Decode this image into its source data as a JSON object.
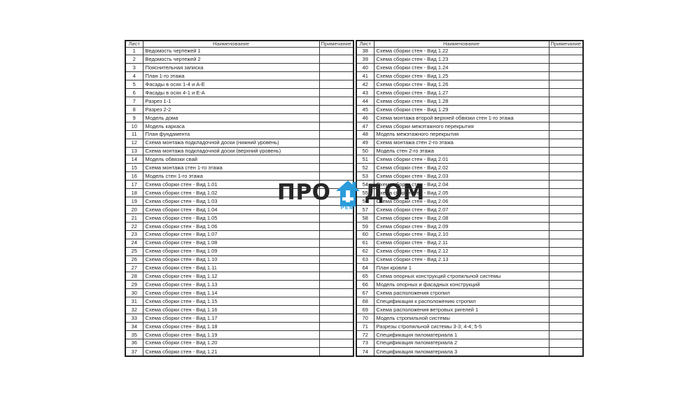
{
  "watermark": {
    "left_text": "ПРО",
    "right_text": "ДОМ",
    "sub_text": "РЕМ",
    "text_color": "#262626",
    "accent_color": "#2b9cdb",
    "icon": "house-icon"
  },
  "tables": [
    {
      "headers": {
        "sheet": "Лист",
        "name": "Наименование",
        "note": "Примечание"
      },
      "rows": [
        [
          "1",
          "Ведомость чертежей 1",
          ""
        ],
        [
          "2",
          "Ведомость чертежей 2",
          ""
        ],
        [
          "3",
          "Пояснительная записка",
          ""
        ],
        [
          "4",
          "План 1-го этажа",
          ""
        ],
        [
          "5",
          "Фасады в осях 1-4 и А-Е",
          ""
        ],
        [
          "6",
          "Фасады в осях 4-1 и Е-А",
          ""
        ],
        [
          "7",
          "Разрез 1-1",
          ""
        ],
        [
          "8",
          "Разрез 2-2",
          ""
        ],
        [
          "9",
          "Модель дома",
          ""
        ],
        [
          "10",
          "Модель каркаса",
          ""
        ],
        [
          "11",
          "План фундамента",
          ""
        ],
        [
          "12",
          "Схема монтажа подкладочной доски (нижний уровень)",
          ""
        ],
        [
          "13",
          "Схема монтажа подкладочной доски (верхний уровень)",
          ""
        ],
        [
          "14",
          "Модель обвязки свай",
          ""
        ],
        [
          "15",
          "Схема монтажа стен 1-го этажа",
          ""
        ],
        [
          "16",
          "Модель стен 1-го этажа",
          ""
        ],
        [
          "17",
          "Схема сборки стен - Вид 1.01",
          ""
        ],
        [
          "18",
          "Схема сборки стен - Вид 1.02",
          ""
        ],
        [
          "19",
          "Схема сборки стен - Вид 1.03",
          ""
        ],
        [
          "20",
          "Схема сборки стен - Вид 1.04",
          ""
        ],
        [
          "21",
          "Схема сборки стен - Вид 1.05",
          ""
        ],
        [
          "22",
          "Схема сборки стен - Вид 1.06",
          ""
        ],
        [
          "23",
          "Схема сборки стен - Вид 1.07",
          ""
        ],
        [
          "24",
          "Схема сборки стен - Вид 1.08",
          ""
        ],
        [
          "25",
          "Схема сборки стен - Вид 1.09",
          ""
        ],
        [
          "26",
          "Схема сборки стен - Вид 1.10",
          ""
        ],
        [
          "27",
          "Схема сборки стен - Вид 1.11",
          ""
        ],
        [
          "28",
          "Схема сборки стен - Вид 1.12",
          ""
        ],
        [
          "29",
          "Схема сборки стен - Вид 1.13",
          ""
        ],
        [
          "30",
          "Схема сборки стен - Вид 1.14",
          ""
        ],
        [
          "31",
          "Схема сборки стен - Вид 1.15",
          ""
        ],
        [
          "32",
          "Схема сборки стен - Вид 1.16",
          ""
        ],
        [
          "33",
          "Схема сборки стен - Вид 1.17",
          ""
        ],
        [
          "34",
          "Схема сборки стен - Вид 1.18",
          ""
        ],
        [
          "35",
          "Схема сборки стен - Вид 1.19",
          ""
        ],
        [
          "36",
          "Схема сборки стен - Вид 1.20",
          ""
        ],
        [
          "37",
          "Схема сборки стен - Вид 1.21",
          ""
        ]
      ]
    },
    {
      "headers": {
        "sheet": "Лист",
        "name": "Наименование",
        "note": "Примечание"
      },
      "rows": [
        [
          "38",
          "Схема сборки стен - Вид 1.22",
          ""
        ],
        [
          "39",
          "Схема сборки стен - Вид 1.23",
          ""
        ],
        [
          "40",
          "Схема сборки стен - Вид 1.24",
          ""
        ],
        [
          "41",
          "Схема сборки стен - Вид 1.25",
          ""
        ],
        [
          "42",
          "Схема сборки стен - Вид 1.26",
          ""
        ],
        [
          "43",
          "Схема сборки стен - Вид 1.27",
          ""
        ],
        [
          "44",
          "Схема сборки стен - Вид 1.28",
          ""
        ],
        [
          "45",
          "Схема сборки стен - Вид 1.29",
          ""
        ],
        [
          "46",
          "Схема монтажа второй верхней обвязки стен 1-го этажа",
          ""
        ],
        [
          "47",
          "Схема сборки межэтажного перекрытия",
          ""
        ],
        [
          "48",
          "Модель межэтажного перекрытия",
          ""
        ],
        [
          "49",
          "Схема монтажа стен 2-го этажа",
          ""
        ],
        [
          "50",
          "Модель стен 2-го этажа",
          ""
        ],
        [
          "51",
          "Схема сборки стен - Вид 2.01",
          ""
        ],
        [
          "52",
          "Схема сборки стен - Вид 2.02",
          ""
        ],
        [
          "53",
          "Схема сборки стен - Вид 2.03",
          ""
        ],
        [
          "54",
          "Схема сборки стен - Вид 2.04",
          ""
        ],
        [
          "55",
          "Схема сборки стен - Вид 2.05",
          ""
        ],
        [
          "56",
          "Схема сборки стен - Вид 2.06",
          ""
        ],
        [
          "57",
          "Схема сборки стен - Вид 2.07",
          ""
        ],
        [
          "58",
          "Схема сборки стен - Вид 2.08",
          ""
        ],
        [
          "59",
          "Схема сборки стен - Вид 2.09",
          ""
        ],
        [
          "60",
          "Схема сборки стен - Вид 2.10",
          ""
        ],
        [
          "61",
          "Схема сборки стен - Вид 2.11",
          ""
        ],
        [
          "62",
          "Схема сборки стен - Вид 2.12",
          ""
        ],
        [
          "63",
          "Схема сборки стен - Вид 2.13",
          ""
        ],
        [
          "64",
          "План кровли 1",
          ""
        ],
        [
          "65",
          "Схема опорных конструкций стропильной системы",
          ""
        ],
        [
          "66",
          "Модель опорных и фасадных конструкций",
          ""
        ],
        [
          "67",
          "Схема расположения стропил",
          ""
        ],
        [
          "68",
          "Спецификация к расположению стропил",
          ""
        ],
        [
          "69",
          "Схема расположения ветровых ригелей 1",
          ""
        ],
        [
          "70",
          "Модель стропильной системы",
          ""
        ],
        [
          "71",
          "Разрезы стропильной системы 3-3; 4-4; 5-5",
          ""
        ],
        [
          "72",
          "Спецификация пиломатериала 1",
          ""
        ],
        [
          "73",
          "Спецификация пиломатериала 2",
          ""
        ],
        [
          "74",
          "Спецификация пиломатериала 3",
          ""
        ]
      ]
    }
  ]
}
